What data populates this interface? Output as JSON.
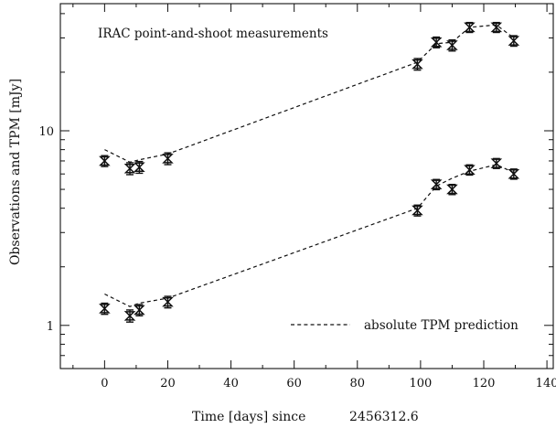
{
  "chart_data": {
    "type": "scatter",
    "annotation": "IRAC point-and-shoot measurements",
    "xlabel": "Time [days] since",
    "xlabel_offset": "2456312.6",
    "ylabel": "Observations and TPM [mJy]",
    "xlim": [
      -14,
      142
    ],
    "ylim": [
      0.6,
      45
    ],
    "yscale": "log",
    "x_ticks": [
      0,
      20,
      40,
      60,
      80,
      100,
      120,
      140
    ],
    "y_major_ticks": [
      1,
      10
    ],
    "y_minor_ticks": [
      0.7,
      0.8,
      0.9,
      2,
      3,
      4,
      5,
      6,
      7,
      8,
      9,
      20,
      30,
      40
    ],
    "legend": {
      "label": "absolute TPM prediction",
      "style": "dashed",
      "position": "lower-right"
    },
    "series": [
      {
        "kind": "observations",
        "x": [
          0,
          8,
          11,
          20,
          99,
          105,
          110,
          115.5,
          124,
          129.5
        ],
        "y": [
          7.0,
          6.4,
          6.5,
          7.2,
          22.0,
          28.5,
          27.5,
          34.0,
          34.0,
          29.0
        ],
        "err": [
          0.45,
          0.45,
          0.45,
          0.5,
          1.5,
          1.8,
          1.8,
          2.0,
          2.0,
          1.8
        ]
      },
      {
        "kind": "observations",
        "x": [
          0,
          8,
          11,
          20,
          99,
          105,
          110,
          115.5,
          124,
          129.5
        ],
        "y": [
          1.22,
          1.12,
          1.2,
          1.32,
          3.9,
          5.3,
          5.0,
          6.3,
          6.8,
          6.0
        ],
        "err": [
          0.08,
          0.08,
          0.08,
          0.09,
          0.25,
          0.32,
          0.3,
          0.38,
          0.4,
          0.36
        ]
      },
      {
        "kind": "model",
        "x": [
          0,
          8,
          11,
          20,
          99,
          105,
          110,
          115.5,
          124,
          129.5
        ],
        "y": [
          8.0,
          6.9,
          7.1,
          7.6,
          22.5,
          28.0,
          28.5,
          34.0,
          35.0,
          30.0
        ]
      },
      {
        "kind": "model",
        "x": [
          0,
          8,
          11,
          20,
          99,
          105,
          110,
          115.5,
          124,
          129.5
        ],
        "y": [
          1.45,
          1.25,
          1.3,
          1.38,
          4.0,
          5.2,
          5.7,
          6.2,
          6.7,
          6.1
        ]
      }
    ]
  }
}
